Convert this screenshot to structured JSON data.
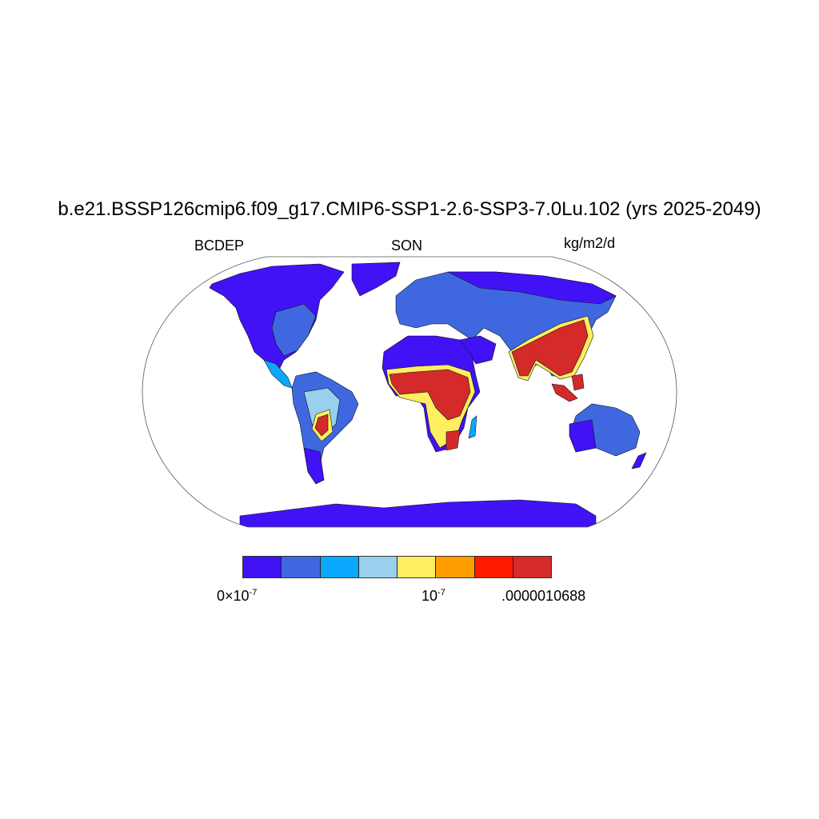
{
  "title": "b.e21.BSSP126cmip6.f09_g17.CMIP6-SSP1-2.6-SSP3-7.0Lu.102 (yrs 2025-2049)",
  "left_string": "BCDEP",
  "center_string": "SON",
  "right_string": "kg/m2/d",
  "colorbar": {
    "colors": [
      "#4012F5",
      "#3F68E0",
      "#0BA8FF",
      "#98D0EE",
      "#FFEE60",
      "#FF9E00",
      "#FF1A00",
      "#D42A2A"
    ],
    "labels": [
      {
        "base": "0×10",
        "exp": "-7"
      },
      {
        "base": "10",
        "exp": "-7"
      },
      {
        "base": ".0000010688",
        "exp": ""
      }
    ]
  }
}
